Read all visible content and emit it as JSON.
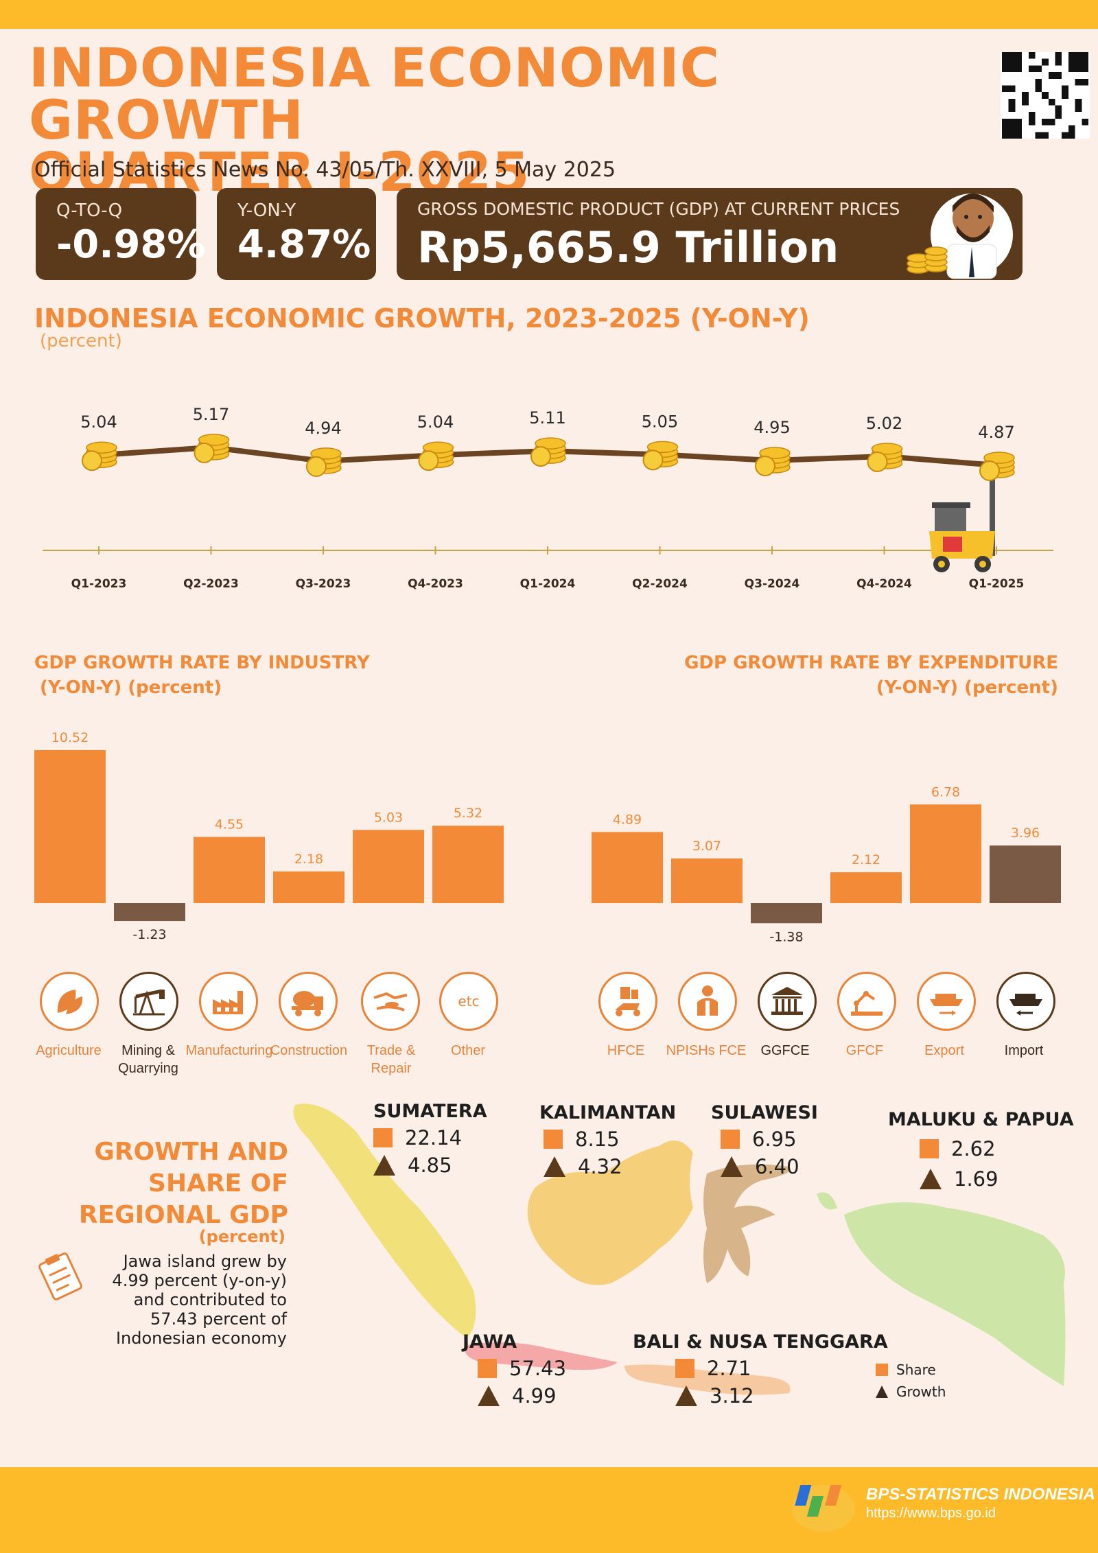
{
  "header": {
    "title_line1": "INDONESIA ECONOMIC GROWTH",
    "title_line2": "QUARTER I-2025",
    "subtitle": "Official Statistics News No. 43/05/Th. XXVIII, 5 May 2025"
  },
  "stats": {
    "qtoq_label": "Q-TO-Q",
    "qtoq_value": "-0.98%",
    "yony_label": "Y-ON-Y",
    "yony_value": "4.87%",
    "gdp_label": "GROSS DOMESTIC PRODUCT (GDP) AT CURRENT PRICES",
    "gdp_value": "Rp5,665.9 Trillion"
  },
  "growth_section": {
    "title": "INDONESIA ECONOMIC GROWTH, 2023-2025 (Y-ON-Y)",
    "unit": "(percent)"
  },
  "industry_section": {
    "title_line1": "GDP GROWTH RATE BY INDUSTRY",
    "title_line2": "(Y-ON-Y) (percent)",
    "icon_labels": [
      {
        "line1": "Agriculture",
        "line2": ""
      },
      {
        "line1": "Mining &",
        "line2": "Quarrying"
      },
      {
        "line1": "Manufacturing",
        "line2": ""
      },
      {
        "line1": "Construction",
        "line2": ""
      },
      {
        "line1": "Trade &",
        "line2": "Repair"
      },
      {
        "line1": "Other",
        "line2": ""
      }
    ],
    "etc_text": "etc"
  },
  "expenditure_section": {
    "title_line1": "GDP GROWTH RATE BY EXPENDITURE",
    "title_line2": "(Y-ON-Y) (percent)",
    "icon_labels": [
      "HFCE",
      "NPISHs FCE",
      "GGFCE",
      "GFCF",
      "Export",
      "Import"
    ]
  },
  "regional": {
    "title_line1": "GROWTH AND",
    "title_line2": "SHARE OF",
    "title_line3": "REGIONAL GDP",
    "unit": "(percent)",
    "note": "Jawa island grew by 4.99 percent (y-on-y) and contributed to 57.43 percent of Indonesian economy",
    "regions": [
      {
        "name": "SUMATERA",
        "share": "22.14",
        "growth": "4.85"
      },
      {
        "name": "KALIMANTAN",
        "share": "8.15",
        "growth": "4.32"
      },
      {
        "name": "SULAWESI",
        "share": "6.95",
        "growth": "6.40"
      },
      {
        "name": "MALUKU & PAPUA",
        "share": "2.62",
        "growth": "1.69"
      },
      {
        "name": "JAWA",
        "share": "57.43",
        "growth": "4.99"
      },
      {
        "name": "BALI & NUSA TENGGARA",
        "share": "2.71",
        "growth": "3.12"
      }
    ],
    "legend_share": "Share",
    "legend_growth": "Growth"
  },
  "footer": {
    "org": "BPS-STATISTICS INDONESIA",
    "url": "https://www.bps.go.id"
  },
  "colors": {
    "accent": "#f28a38",
    "brown": "#5b3a1c",
    "bar_negative": "#7a5a45",
    "background": "#fcefe8",
    "yellow": "#fdbb2a"
  },
  "chart_data": [
    {
      "type": "line",
      "title": "INDONESIA ECONOMIC GROWTH, 2023-2025 (Y-ON-Y)",
      "ylabel": "(percent)",
      "categories": [
        "Q1-2023",
        "Q2-2023",
        "Q3-2023",
        "Q4-2023",
        "Q1-2024",
        "Q2-2024",
        "Q3-2024",
        "Q4-2024",
        "Q1-2025"
      ],
      "values": [
        5.04,
        5.17,
        4.94,
        5.04,
        5.11,
        5.05,
        4.95,
        5.02,
        4.87
      ],
      "labels": [
        "5.04",
        "5.17",
        "4.94",
        "5.04",
        "5.11",
        "5.05",
        "4.95",
        "5.02",
        "4.87"
      ]
    },
    {
      "type": "bar",
      "title": "GDP GROWTH RATE BY INDUSTRY (Y-ON-Y) (percent)",
      "categories": [
        "Agriculture",
        "Mining & Quarrying",
        "Manufacturing",
        "Construction",
        "Trade & Repair",
        "Other"
      ],
      "values": [
        10.52,
        -1.23,
        4.55,
        2.18,
        5.03,
        5.32
      ],
      "labels": [
        "10.52",
        "-1.23",
        "4.55",
        "2.18",
        "5.03",
        "5.32"
      ]
    },
    {
      "type": "bar",
      "title": "GDP GROWTH RATE BY EXPENDITURE (Y-ON-Y) (percent)",
      "categories": [
        "HFCE",
        "NPISHs FCE",
        "GGFCE",
        "GFCF",
        "Export",
        "Import"
      ],
      "values": [
        4.89,
        3.07,
        -1.38,
        2.12,
        6.78,
        3.96
      ],
      "labels": [
        "4.89",
        "3.07",
        "-1.38",
        "2.12",
        "6.78",
        "3.96"
      ]
    }
  ]
}
